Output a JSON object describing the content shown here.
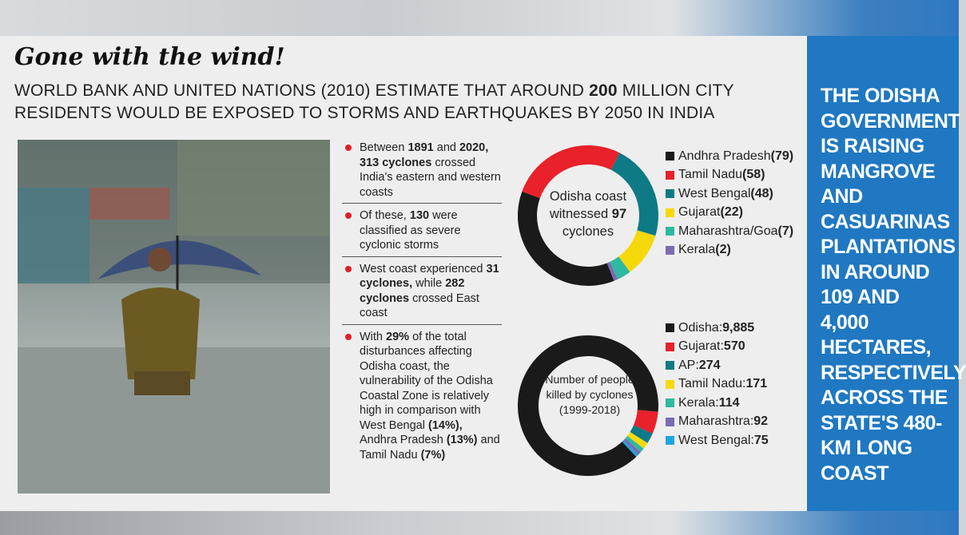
{
  "title": "Gone with the wind!",
  "subtitle": {
    "pre": "WORLD BANK AND UNITED NATIONS (2010) ESTIMATE THAT AROUND ",
    "bold": "200",
    "post": " MILLION CITY RESIDENTS WOULD BE EXPOSED TO STORMS AND EARTHQUAKES BY 2050 IN INDIA"
  },
  "bullets": [
    [
      {
        "t": "Between "
      },
      {
        "b": "1891"
      },
      {
        "t": " and "
      },
      {
        "b": "2020, 313 cyclones"
      },
      {
        "t": " crossed India's eastern and western coasts"
      }
    ],
    [
      {
        "t": "Of these, "
      },
      {
        "b": "130"
      },
      {
        "t": " were classified as severe cyclonic storms"
      }
    ],
    [
      {
        "t": "West coast experienced "
      },
      {
        "b": "31 cyclones,"
      },
      {
        "t": " while "
      },
      {
        "b": "282 cyclones"
      },
      {
        "t": " crossed East coast"
      }
    ],
    [
      {
        "t": "With "
      },
      {
        "b": "29%"
      },
      {
        "t": " of the total disturbances affecting Odisha coast, the vulnerability of the Odisha Coastal Zone is relatively high in comparison with West Bengal "
      },
      {
        "b": "(14%),"
      },
      {
        "t": " Andhra Pradesh "
      },
      {
        "b": "(13%)"
      },
      {
        "t": " and Tamil Nadu "
      },
      {
        "b": "(7%)"
      }
    ]
  ],
  "side_text": "THE ODISHA GOVERNMENT IS RAISING MANGROVE AND CASUARINAS PLANTATIONS IN AROUND 109 AND 4,000 HECTARES, RESPECTIVELY ACROSS THE STATE'S 480-KM LONG COAST",
  "chart_data": [
    {
      "type": "pie",
      "subtype": "donut",
      "center_label": {
        "pre": "Odisha coast witnessed ",
        "bold": "97",
        "post": " cyclones"
      },
      "categories": [
        "Andhra Pradesh",
        "Tamil Nadu",
        "West Bengal",
        "Gujarat",
        "Maharashtra/Goa",
        "Kerala"
      ],
      "values": [
        79,
        58,
        48,
        22,
        7,
        2
      ],
      "labels": [
        [
          "Andhra Pradesh ",
          "(79)"
        ],
        [
          "Tamil Nadu ",
          "(58)"
        ],
        [
          "West Bengal ",
          "(48)"
        ],
        [
          "Gujarat ",
          "(22)"
        ],
        [
          "Maharashtra/Goa ",
          "(7)"
        ],
        [
          "Kerala ",
          "(2)"
        ]
      ],
      "colors": [
        "#1a1a1a",
        "#e8212b",
        "#0d7a85",
        "#f5d90a",
        "#2fb9a0",
        "#7b6bb3"
      ],
      "legend": "right"
    },
    {
      "type": "pie",
      "subtype": "donut",
      "center_label": "Number of people killed by cyclones (1999-2018)",
      "categories": [
        "Odisha",
        "Gujarat",
        "AP",
        "Tamil Nadu",
        "Kerala",
        "Maharashtra",
        "West Bengal"
      ],
      "values": [
        9885,
        570,
        274,
        171,
        114,
        92,
        75
      ],
      "labels": [
        [
          "Odisha: ",
          "9,885"
        ],
        [
          "Gujarat: ",
          "570"
        ],
        [
          "AP: ",
          "274"
        ],
        [
          "Tamil Nadu: ",
          "171"
        ],
        [
          "Kerala: ",
          "114"
        ],
        [
          "Maharashtra: ",
          "92"
        ],
        [
          "West Bengal: ",
          "75"
        ]
      ],
      "colors": [
        "#1a1a1a",
        "#e8212b",
        "#0d7a85",
        "#f5d90a",
        "#2fb9a0",
        "#7b6bb3",
        "#1fa6e0"
      ],
      "legend": "right"
    }
  ]
}
